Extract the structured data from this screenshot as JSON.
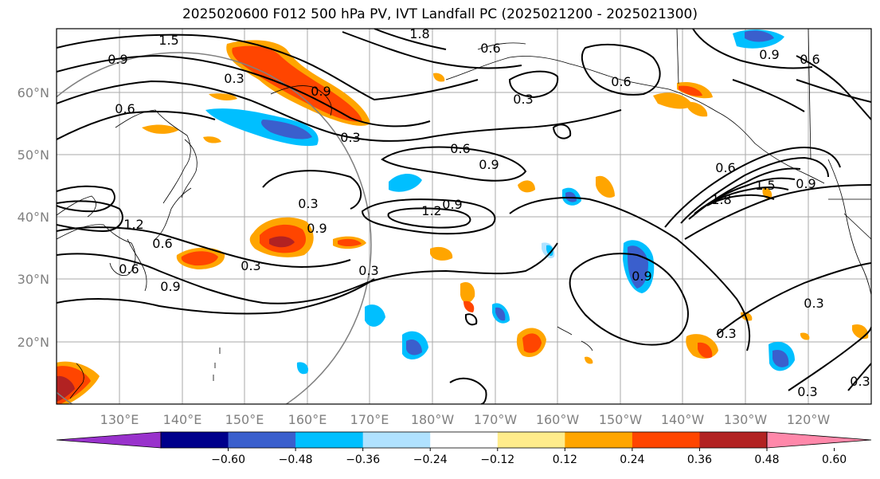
{
  "title": "2025020600 F012 500 hPa PV, IVT Landfall PC (2025021200 - 2025021300)",
  "lat_labels": [
    "60°N",
    "50°N",
    "40°N",
    "30°N",
    "20°N"
  ],
  "lon_labels": [
    "130°E",
    "140°E",
    "150°E",
    "160°E",
    "170°E",
    "180°W",
    "170°W",
    "160°W",
    "150°W",
    "140°W",
    "130°W",
    "120°W"
  ],
  "contour_labels": [
    "1.5",
    "0.9",
    "0.3",
    "0.6",
    "1.8",
    "0.6",
    "0.9",
    "0.3",
    "0.6",
    "0.3",
    "0.6",
    "0.9",
    "1.2",
    "0.9",
    "0.3",
    "0.9",
    "1.2",
    "0.6",
    "0.3",
    "0.6",
    "0.9",
    "0.3",
    "0.9",
    "0.6",
    "1.8",
    "1.5",
    "0.9",
    "0.3",
    "0.3",
    "0.3",
    "0.3",
    "0.6",
    "0.9"
  ],
  "colorbar": {
    "colors": [
      "#9932cc",
      "#00008b",
      "#3a5fcd",
      "#00bfff",
      "#b0e2ff",
      "#ffffff",
      "#ffec8b",
      "#ffa500",
      "#ff4500",
      "#b22222",
      "#ff88aa"
    ],
    "ticks": [
      "−0.60",
      "−0.48",
      "−0.36",
      "−0.24",
      "−0.12",
      "0.12",
      "0.24",
      "0.36",
      "0.48",
      "0.60"
    ]
  },
  "legend": {
    "shading": "IVT Landfall PC",
    "contours": "500 hPa PV"
  }
}
